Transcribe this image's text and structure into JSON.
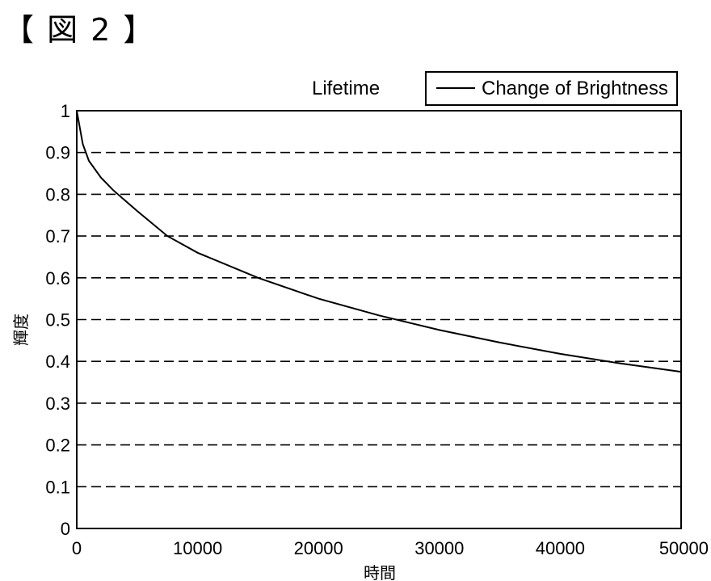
{
  "figure_label": "【 図 2 】",
  "chart_data": {
    "type": "line",
    "title": "Lifetime",
    "xlabel": "時間",
    "ylabel": "輝度",
    "xlim": [
      0,
      50000
    ],
    "ylim": [
      0,
      1
    ],
    "x_ticks": [
      "0",
      "10000",
      "20000",
      "30000",
      "40000",
      "50000"
    ],
    "y_ticks": [
      "0",
      "0.1",
      "0.2",
      "0.3",
      "0.4",
      "0.5",
      "0.6",
      "0.7",
      "0.8",
      "0.9",
      "1"
    ],
    "grid": "horizontal dashed",
    "legend_position": "top-right",
    "series": [
      {
        "name": "Change of Brightness",
        "color": "#000000",
        "x": [
          0,
          500,
          1000,
          2000,
          3000,
          5000,
          7500,
          10000,
          15000,
          20000,
          25000,
          30000,
          35000,
          40000,
          45000,
          50000
        ],
        "y": [
          1.0,
          0.92,
          0.88,
          0.84,
          0.81,
          0.76,
          0.7,
          0.66,
          0.6,
          0.55,
          0.51,
          0.475,
          0.445,
          0.418,
          0.395,
          0.375
        ]
      }
    ]
  }
}
